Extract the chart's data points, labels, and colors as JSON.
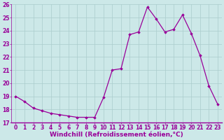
{
  "x": [
    0,
    1,
    2,
    3,
    4,
    5,
    6,
    7,
    8,
    9,
    10,
    11,
    12,
    13,
    14,
    15,
    16,
    17,
    18,
    19,
    20,
    21,
    22,
    23
  ],
  "y": [
    19.0,
    18.6,
    18.1,
    17.9,
    17.7,
    17.6,
    17.5,
    17.4,
    17.4,
    17.4,
    18.9,
    21.0,
    21.1,
    23.7,
    23.9,
    25.8,
    24.9,
    23.9,
    24.1,
    25.2,
    23.8,
    22.1,
    19.8,
    18.4
  ],
  "line_color": "#990099",
  "marker": "D",
  "marker_size": 1.8,
  "bg_color": "#cce8e8",
  "grid_color": "#aacccc",
  "xlabel": "Windchill (Refroidissement éolien,°C)",
  "xlim": [
    -0.5,
    23.5
  ],
  "ylim": [
    17,
    26
  ],
  "yticks": [
    17,
    18,
    19,
    20,
    21,
    22,
    23,
    24,
    25,
    26
  ],
  "xticks": [
    0,
    1,
    2,
    3,
    4,
    5,
    6,
    7,
    8,
    9,
    10,
    11,
    12,
    13,
    14,
    15,
    16,
    17,
    18,
    19,
    20,
    21,
    22,
    23
  ],
  "xlabel_fontsize": 6.5,
  "tick_fontsize": 5.5,
  "line_width": 0.9,
  "spine_color": "#666666"
}
